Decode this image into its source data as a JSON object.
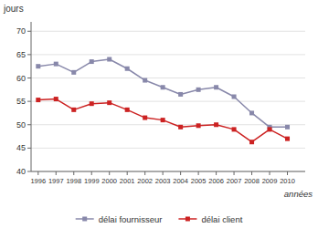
{
  "chart_data": {
    "type": "line",
    "x": [
      1996,
      1997,
      1998,
      1999,
      2000,
      2001,
      2002,
      2003,
      2004,
      2005,
      2006,
      2007,
      2008,
      2009,
      2010
    ],
    "series": [
      {
        "name": "délai fournisseur",
        "color": "#8888aa",
        "marker": "square",
        "values": [
          62.5,
          63.0,
          61.2,
          63.5,
          64.0,
          62.0,
          59.5,
          58.0,
          56.5,
          57.5,
          58.0,
          56.0,
          52.5,
          49.5,
          49.5
        ]
      },
      {
        "name": "délai client",
        "color": "#cc2222",
        "marker": "square",
        "values": [
          55.3,
          55.5,
          53.2,
          54.5,
          54.7,
          53.2,
          51.5,
          51.0,
          49.5,
          49.8,
          50.0,
          49.0,
          46.3,
          49.0,
          47.0
        ]
      }
    ],
    "x_label": "années",
    "y_label": "jours",
    "xlim": [
      1995.6,
      2011.0
    ],
    "xticks": [
      1996,
      1997,
      1998,
      1999,
      2000,
      2001,
      2002,
      2003,
      2004,
      2005,
      2006,
      2007,
      2008,
      2009,
      2010
    ],
    "ylim": [
      40,
      72
    ],
    "yticks": [
      40,
      45,
      50,
      55,
      60,
      65,
      70
    ],
    "grid": true,
    "legend": "bottom"
  }
}
